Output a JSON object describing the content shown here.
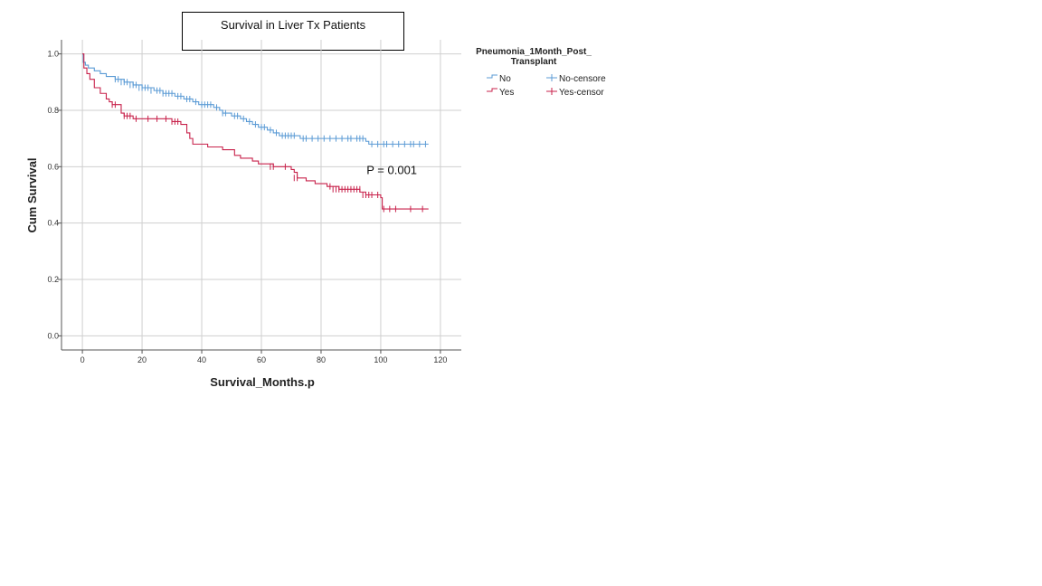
{
  "chart_data": {
    "type": "line",
    "subtype": "kaplan-meier",
    "title": "Survival in Liver Tx Patients",
    "xlabel": "Survival_Months.p",
    "ylabel": "Cum Survival",
    "xlim": [
      -7,
      127
    ],
    "ylim": [
      -0.05,
      1.05
    ],
    "x_ticks": [
      0,
      20,
      40,
      60,
      80,
      100,
      120
    ],
    "y_ticks": [
      0.0,
      0.2,
      0.4,
      0.6,
      0.8,
      1.0
    ],
    "x_tick_labels": [
      "0",
      "20",
      "40",
      "60",
      "80",
      "100",
      "120"
    ],
    "y_tick_labels": [
      "0.0",
      "0.2",
      "0.4",
      "0.6",
      "0.8",
      "1.0"
    ],
    "grid": true,
    "legend_title": "Pneumonia_1Month_Post_ Transplant",
    "legend_title_lines": [
      "Pneumonia_1Month_Post_",
      "Transplant"
    ],
    "legend_position": "right",
    "annotation": "P = 0.001",
    "annotation_position": [
      94,
      0.59
    ],
    "series": [
      {
        "name": "No",
        "censor_name": "No-censore",
        "color": "#5b9bd5",
        "steps": [
          [
            0,
            1.0
          ],
          [
            0.3,
            0.97
          ],
          [
            1,
            0.96
          ],
          [
            2,
            0.95
          ],
          [
            4,
            0.94
          ],
          [
            6,
            0.93
          ],
          [
            8,
            0.92
          ],
          [
            11,
            0.91
          ],
          [
            14,
            0.9
          ],
          [
            17,
            0.89
          ],
          [
            20,
            0.88
          ],
          [
            24,
            0.87
          ],
          [
            27,
            0.86
          ],
          [
            31,
            0.85
          ],
          [
            34,
            0.84
          ],
          [
            37,
            0.83
          ],
          [
            39,
            0.82
          ],
          [
            44,
            0.81
          ],
          [
            46,
            0.8
          ],
          [
            47,
            0.79
          ],
          [
            50,
            0.78
          ],
          [
            53,
            0.77
          ],
          [
            55,
            0.76
          ],
          [
            57,
            0.75
          ],
          [
            59,
            0.74
          ],
          [
            62,
            0.73
          ],
          [
            64,
            0.72
          ],
          [
            66,
            0.71
          ],
          [
            73,
            0.7
          ],
          [
            95,
            0.69
          ],
          [
            96,
            0.68
          ],
          [
            116,
            0.68
          ]
        ],
        "censored": [
          [
            11,
            0.91
          ],
          [
            12,
            0.91
          ],
          [
            13,
            0.9
          ],
          [
            14,
            0.9
          ],
          [
            15,
            0.9
          ],
          [
            16,
            0.89
          ],
          [
            17,
            0.89
          ],
          [
            18,
            0.89
          ],
          [
            19,
            0.88
          ],
          [
            20,
            0.88
          ],
          [
            21,
            0.88
          ],
          [
            22,
            0.88
          ],
          [
            23,
            0.87
          ],
          [
            25,
            0.87
          ],
          [
            26,
            0.87
          ],
          [
            27,
            0.86
          ],
          [
            28,
            0.86
          ],
          [
            29,
            0.86
          ],
          [
            30,
            0.86
          ],
          [
            32,
            0.85
          ],
          [
            33,
            0.85
          ],
          [
            35,
            0.84
          ],
          [
            36,
            0.84
          ],
          [
            38,
            0.83
          ],
          [
            40,
            0.82
          ],
          [
            41,
            0.82
          ],
          [
            42,
            0.82
          ],
          [
            43,
            0.82
          ],
          [
            45,
            0.81
          ],
          [
            47,
            0.79
          ],
          [
            48,
            0.79
          ],
          [
            51,
            0.78
          ],
          [
            52,
            0.78
          ],
          [
            54,
            0.77
          ],
          [
            56,
            0.76
          ],
          [
            58,
            0.75
          ],
          [
            60,
            0.74
          ],
          [
            61,
            0.74
          ],
          [
            63,
            0.73
          ],
          [
            65,
            0.72
          ],
          [
            67,
            0.71
          ],
          [
            68,
            0.71
          ],
          [
            69,
            0.71
          ],
          [
            70,
            0.71
          ],
          [
            71,
            0.71
          ],
          [
            74,
            0.7
          ],
          [
            75,
            0.7
          ],
          [
            77,
            0.7
          ],
          [
            79,
            0.7
          ],
          [
            81,
            0.7
          ],
          [
            83,
            0.7
          ],
          [
            85,
            0.7
          ],
          [
            87,
            0.7
          ],
          [
            89,
            0.7
          ],
          [
            90,
            0.7
          ],
          [
            92,
            0.7
          ],
          [
            93,
            0.7
          ],
          [
            94,
            0.7
          ],
          [
            97,
            0.68
          ],
          [
            99,
            0.68
          ],
          [
            101,
            0.68
          ],
          [
            102,
            0.68
          ],
          [
            104,
            0.68
          ],
          [
            106,
            0.68
          ],
          [
            108,
            0.68
          ],
          [
            110,
            0.68
          ],
          [
            111,
            0.68
          ],
          [
            113,
            0.68
          ],
          [
            115,
            0.68
          ]
        ]
      },
      {
        "name": "Yes",
        "censor_name": "Yes-censor",
        "color": "#c8224b",
        "steps": [
          [
            0,
            1.0
          ],
          [
            0.5,
            0.95
          ],
          [
            1.5,
            0.93
          ],
          [
            2.5,
            0.91
          ],
          [
            4,
            0.88
          ],
          [
            6,
            0.86
          ],
          [
            8,
            0.84
          ],
          [
            9,
            0.83
          ],
          [
            10,
            0.82
          ],
          [
            13,
            0.79
          ],
          [
            14,
            0.78
          ],
          [
            17,
            0.77
          ],
          [
            30,
            0.76
          ],
          [
            33,
            0.75
          ],
          [
            35,
            0.72
          ],
          [
            36,
            0.7
          ],
          [
            37,
            0.68
          ],
          [
            42,
            0.67
          ],
          [
            47,
            0.66
          ],
          [
            51,
            0.64
          ],
          [
            53,
            0.63
          ],
          [
            57,
            0.62
          ],
          [
            59,
            0.61
          ],
          [
            64,
            0.6
          ],
          [
            70,
            0.59
          ],
          [
            71,
            0.58
          ],
          [
            72,
            0.56
          ],
          [
            75,
            0.55
          ],
          [
            78,
            0.54
          ],
          [
            82,
            0.53
          ],
          [
            86,
            0.52
          ],
          [
            93,
            0.51
          ],
          [
            95,
            0.5
          ],
          [
            100,
            0.49
          ],
          [
            100.5,
            0.45
          ],
          [
            116,
            0.45
          ]
        ],
        "censored": [
          [
            10,
            0.82
          ],
          [
            11,
            0.82
          ],
          [
            14,
            0.78
          ],
          [
            15,
            0.78
          ],
          [
            16,
            0.78
          ],
          [
            18,
            0.77
          ],
          [
            22,
            0.77
          ],
          [
            25,
            0.77
          ],
          [
            28,
            0.77
          ],
          [
            30,
            0.76
          ],
          [
            31,
            0.76
          ],
          [
            32,
            0.76
          ],
          [
            63,
            0.6
          ],
          [
            64,
            0.6
          ],
          [
            68,
            0.6
          ],
          [
            71,
            0.56
          ],
          [
            72,
            0.56
          ],
          [
            83,
            0.53
          ],
          [
            84,
            0.52
          ],
          [
            85,
            0.52
          ],
          [
            86,
            0.52
          ],
          [
            87,
            0.52
          ],
          [
            88,
            0.52
          ],
          [
            89,
            0.52
          ],
          [
            90,
            0.52
          ],
          [
            91,
            0.52
          ],
          [
            92,
            0.52
          ],
          [
            93,
            0.52
          ],
          [
            94,
            0.5
          ],
          [
            95,
            0.5
          ],
          [
            96,
            0.5
          ],
          [
            97,
            0.5
          ],
          [
            99,
            0.5
          ],
          [
            101,
            0.45
          ],
          [
            103,
            0.45
          ],
          [
            105,
            0.45
          ],
          [
            110,
            0.45
          ],
          [
            114,
            0.45
          ]
        ]
      }
    ]
  }
}
